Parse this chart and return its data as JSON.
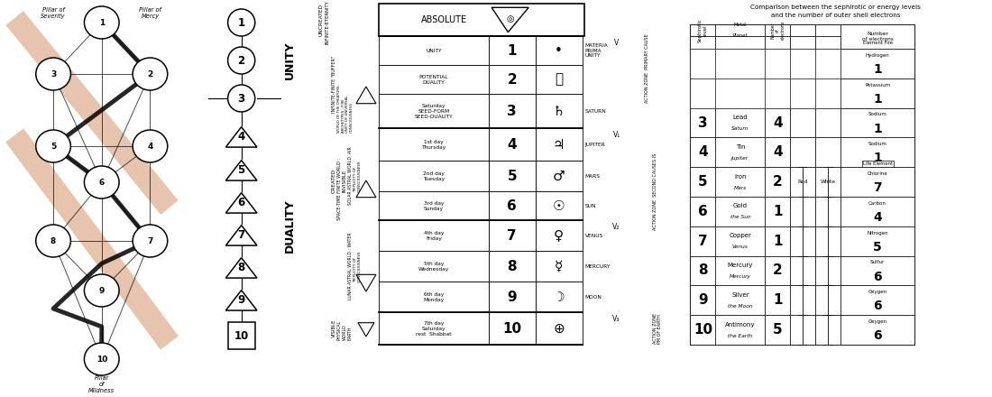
{
  "bg_color": "#ffffff",
  "title_right": "Comparison between the sephirotic or energy levels\nand the number of outer shell electrons",
  "orange": "#d4956a",
  "chain_numbers": [
    "1",
    "2",
    "3",
    "4",
    "5",
    "6",
    "7",
    "8",
    "9",
    "10"
  ],
  "level_texts": [
    "UNITY",
    "POTENTIAL\nDUALITY",
    "Saturday\nSEED-FORM\nSEED-DUALITY",
    "1st day\nThursday",
    "2nd day\nTuesday",
    "3rd day\nSunday",
    "4th day\nFriday",
    "5th day\nWednesday",
    "6th day\nMonday",
    "7th day\nSaturday\nrest  Shabbat"
  ],
  "level_nums": [
    "1",
    "2",
    "3",
    "4",
    "5",
    "6",
    "7",
    "8",
    "9",
    "10"
  ],
  "planet_labels": [
    "MATERIA\nPRIMA\nUNITY",
    "",
    "SATURN",
    "JUPITER",
    "MARS",
    "SUN",
    "VENUS",
    "MERCURY",
    "MOON",
    ""
  ],
  "right_rows": [
    {
      "seph": "3",
      "metal": "Lead",
      "planet_r": "Saturn",
      "num_e": "4"
    },
    {
      "seph": "4",
      "metal": "Tin",
      "planet_r": "Jupiter",
      "num_e": "4"
    },
    {
      "seph": "5",
      "metal": "Iron",
      "planet_r": "Mars",
      "num_e": "2"
    },
    {
      "seph": "6",
      "metal": "Gold",
      "planet_r": "the Sun",
      "num_e": "1"
    },
    {
      "seph": "7",
      "metal": "Copper",
      "planet_r": "Venus",
      "num_e": "1"
    },
    {
      "seph": "8",
      "metal": "Mercury",
      "planet_r": "Mercury",
      "num_e": "2"
    },
    {
      "seph": "9",
      "metal": "Silver",
      "planet_r": "the Moon",
      "num_e": "1"
    },
    {
      "seph": "10",
      "metal": "Antimony",
      "planet_r": "the Earth",
      "num_e": "5"
    }
  ],
  "right_elements": [
    {
      "name": "Hydrogen",
      "n": "1"
    },
    {
      "name": "Potassium",
      "n": "1"
    },
    {
      "name": "Sodium",
      "n": "1"
    },
    {
      "name": "Sodium",
      "n": "1"
    },
    {
      "name": "Chlorine",
      "n": "7"
    },
    {
      "name": "Carbon",
      "n": "4"
    },
    {
      "name": "Nitrogen",
      "n": "5"
    },
    {
      "name": "Sulfur",
      "n": "6"
    },
    {
      "name": "Oxygen",
      "n": "6"
    },
    {
      "name": "Oxygen",
      "n": "6"
    }
  ]
}
